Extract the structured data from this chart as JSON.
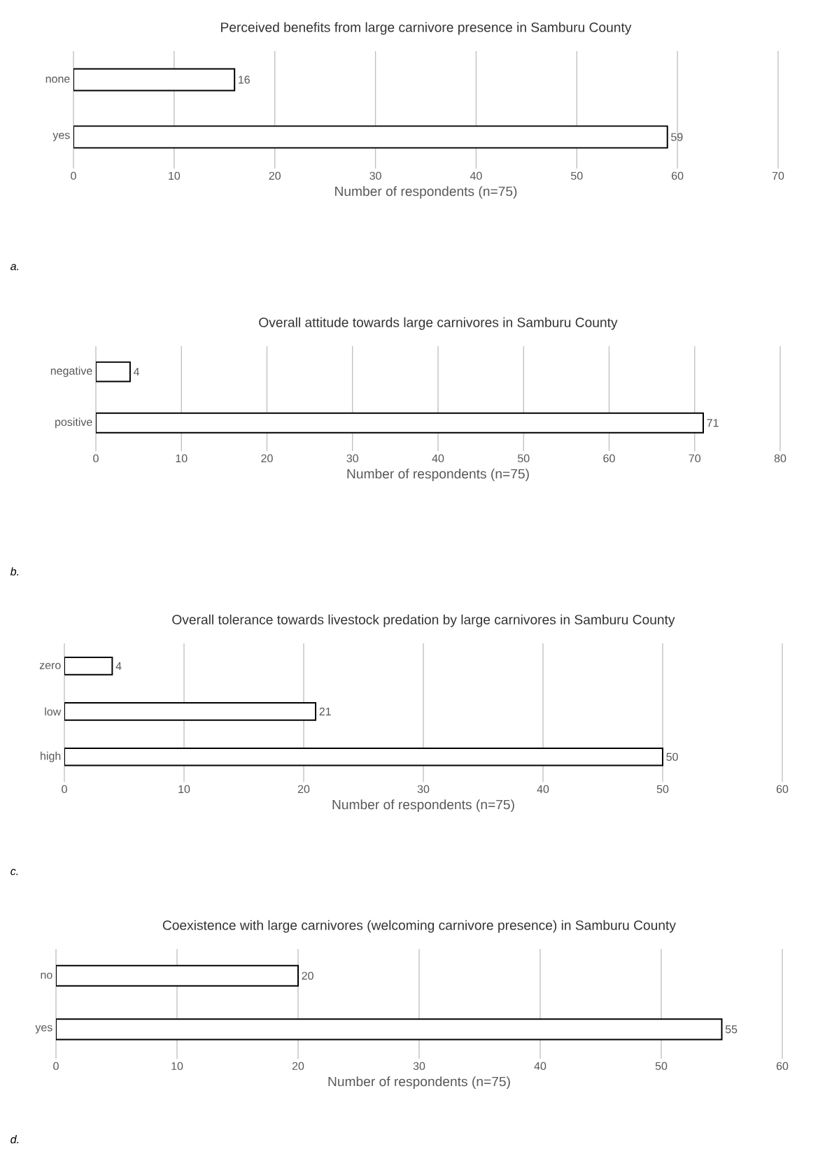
{
  "chart_data": [
    {
      "type": "bar",
      "orientation": "horizontal",
      "title": "Perceived benefits from large carnivore presence in Samburu County",
      "xlabel": "Number of respondents (n=75)",
      "categories": [
        "none",
        "yes"
      ],
      "values": [
        16,
        59
      ],
      "color": "#000000",
      "xlim": [
        0,
        70
      ],
      "xticks": [
        0,
        10,
        20,
        30,
        40,
        50,
        60,
        70
      ],
      "grid": "x",
      "data_labels": true,
      "annotations": [
        "a."
      ]
    },
    {
      "type": "bar",
      "orientation": "horizontal",
      "title": "Overall attitude towards large carnivores in Samburu County",
      "xlabel": "Number of respondents (n=75)",
      "categories": [
        "negative",
        "positive"
      ],
      "values": [
        4,
        71
      ],
      "color": "#000000",
      "xlim": [
        0,
        80
      ],
      "xticks": [
        0,
        10,
        20,
        30,
        40,
        50,
        60,
        70,
        80
      ],
      "grid": "x",
      "data_labels": true,
      "annotations": [
        "b."
      ]
    },
    {
      "type": "bar",
      "orientation": "horizontal",
      "title": "Overall tolerance towards livestock predation by large carnivores in Samburu County",
      "xlabel": "Number of respondents (n=75)",
      "categories": [
        "zero",
        "low",
        "high"
      ],
      "values": [
        4,
        21,
        50
      ],
      "color": "#000000",
      "xlim": [
        0,
        60
      ],
      "xticks": [
        0,
        10,
        20,
        30,
        40,
        50,
        60
      ],
      "grid": "x",
      "data_labels": true,
      "annotations": [
        "c."
      ]
    },
    {
      "type": "bar",
      "orientation": "horizontal",
      "title": "Coexistence with large carnivores (welcoming carnivore presence) in Samburu County",
      "xlabel": "Number of respondents (n=75)",
      "categories": [
        "no",
        "yes"
      ],
      "values": [
        20,
        55
      ],
      "color": "#000000",
      "xlim": [
        0,
        60
      ],
      "xticks": [
        0,
        10,
        20,
        30,
        40,
        50,
        60
      ],
      "grid": "x",
      "data_labels": true,
      "annotations": [
        "d."
      ]
    }
  ]
}
